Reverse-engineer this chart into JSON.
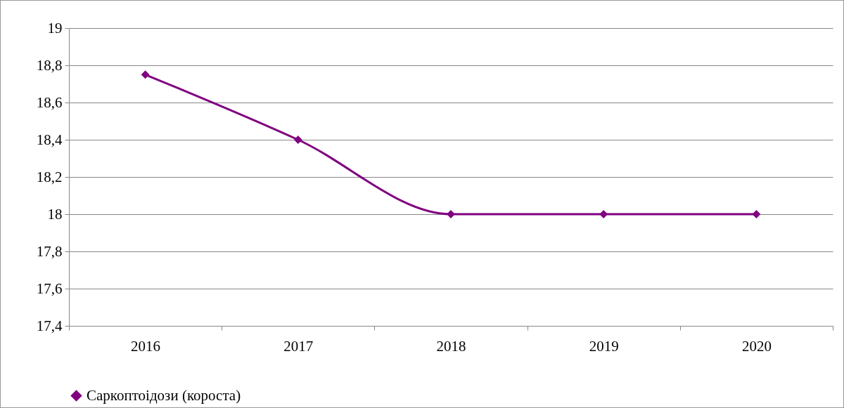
{
  "chart_data": {
    "type": "line",
    "categories": [
      "2016",
      "2017",
      "2018",
      "2019",
      "2020"
    ],
    "series": [
      {
        "name": "Саркоптоідози (короста)",
        "color": "#800080",
        "values": [
          18.75,
          18.4,
          18,
          18,
          18
        ]
      }
    ],
    "ylim": [
      17.4,
      19
    ],
    "yticks": [
      {
        "value": 17.4,
        "label": "17,4"
      },
      {
        "value": 17.6,
        "label": "17,6"
      },
      {
        "value": 17.8,
        "label": "17,8"
      },
      18,
      {
        "value": 18.2,
        "label": "18,2"
      },
      {
        "value": 18.4,
        "label": "18,4"
      },
      {
        "value": 18.6,
        "label": "18,6"
      },
      {
        "value": 18.8,
        "label": "18,8"
      },
      19
    ],
    "grid": "y",
    "legend": "bottom",
    "marker": "diamond",
    "line_style": "solid"
  }
}
